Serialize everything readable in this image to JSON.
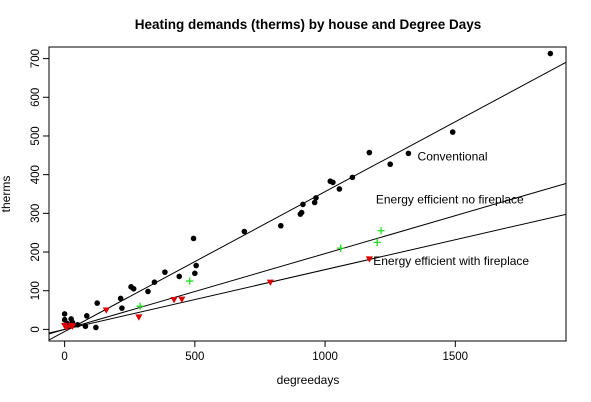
{
  "chart_data": {
    "type": "scatter",
    "title": "Heating demands (therms) by house and Degree Days",
    "xlabel": "degreedays",
    "ylabel": "therms",
    "xlim": [
      -60,
      1925
    ],
    "ylim": [
      -30,
      730
    ],
    "xticks": [
      0,
      500,
      1000,
      1500
    ],
    "yticks": [
      0,
      100,
      200,
      300,
      400,
      500,
      600,
      700
    ],
    "grid": false,
    "series": [
      {
        "marker": "filled-circle",
        "color": "#000000",
        "points": [
          [
            0,
            40
          ],
          [
            0,
            25
          ],
          [
            10,
            15
          ],
          [
            25,
            27
          ],
          [
            30,
            18
          ],
          [
            50,
            12
          ],
          [
            80,
            8
          ],
          [
            85,
            35
          ],
          [
            120,
            5
          ],
          [
            125,
            68
          ],
          [
            215,
            80
          ],
          [
            220,
            55
          ],
          [
            255,
            110
          ],
          [
            265,
            105
          ],
          [
            320,
            98
          ],
          [
            345,
            122
          ],
          [
            385,
            148
          ],
          [
            440,
            137
          ],
          [
            495,
            235
          ],
          [
            500,
            145
          ],
          [
            505,
            165
          ],
          [
            690,
            253
          ],
          [
            830,
            268
          ],
          [
            905,
            298
          ],
          [
            910,
            302
          ],
          [
            915,
            323
          ],
          [
            960,
            328
          ],
          [
            965,
            340
          ],
          [
            1020,
            383
          ],
          [
            1030,
            380
          ],
          [
            1055,
            363
          ],
          [
            1105,
            393
          ],
          [
            1170,
            457
          ],
          [
            1250,
            427
          ],
          [
            1320,
            455
          ],
          [
            1490,
            510
          ],
          [
            1865,
            713
          ]
        ]
      },
      {
        "marker": "plus",
        "color": "#22dd22",
        "points": [
          [
            290,
            60
          ],
          [
            480,
            125
          ],
          [
            1060,
            210
          ],
          [
            1200,
            225
          ],
          [
            1215,
            255
          ]
        ]
      },
      {
        "marker": "filled-down-triangle",
        "color": "#dd0000",
        "points": [
          [
            0,
            10
          ],
          [
            10,
            5
          ],
          [
            25,
            10
          ],
          [
            30,
            8
          ],
          [
            160,
            50
          ],
          [
            285,
            32
          ],
          [
            420,
            77
          ],
          [
            450,
            78
          ],
          [
            790,
            122
          ],
          [
            1170,
            182
          ]
        ]
      }
    ],
    "lines": [
      {
        "intercept": -5.5,
        "slope": 0.3615
      },
      {
        "intercept": 0,
        "slope": 0.196
      },
      {
        "intercept": 0,
        "slope": 0.1545
      }
    ],
    "annotations": [
      {
        "text": "Conventional",
        "x": 1355,
        "y": 447
      },
      {
        "text": "Energy efficient no fireplace",
        "x": 1195,
        "y": 336
      },
      {
        "text": "Energy efficient with fireplace",
        "x": 1185,
        "y": 177
      }
    ]
  }
}
